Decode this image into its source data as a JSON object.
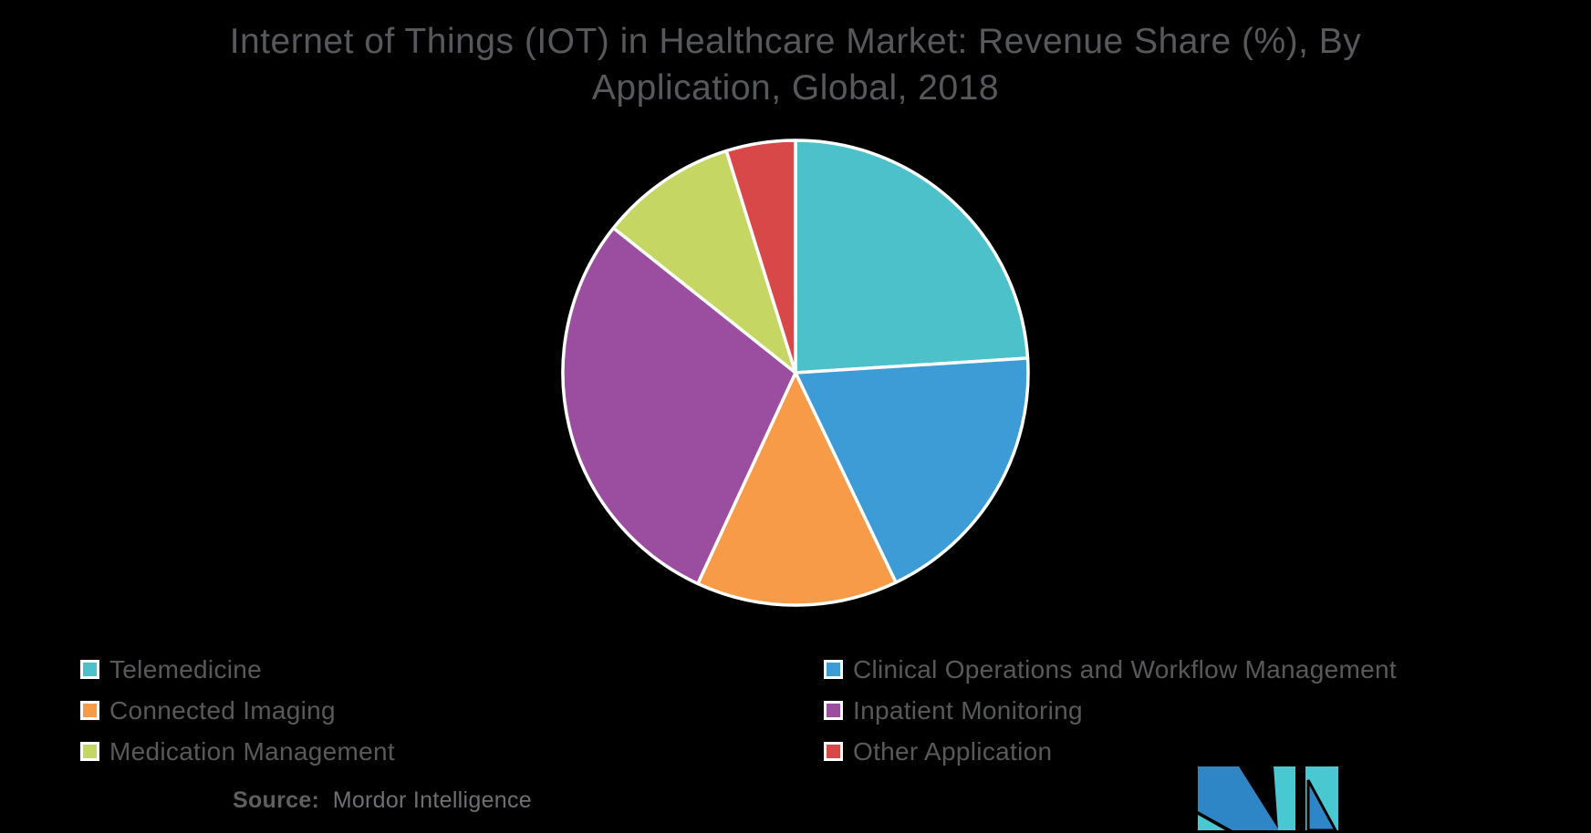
{
  "title": {
    "line1": "Internet of Things (IOT) in Healthcare Market: Revenue Share (%), By",
    "line2": "Application, Global, 2018"
  },
  "chart_data": {
    "type": "pie",
    "title": "Internet of Things (IOT) in Healthcare Market: Revenue Share (%), By Application, Global, 2018",
    "labels": [
      "Telemedicine",
      "Clinical Operations and Workflow Management",
      "Connected Imaging",
      "Inpatient Monitoring",
      "Medication Management",
      "Other Application"
    ],
    "values": [
      24.0,
      18.9,
      14.0,
      28.8,
      9.5,
      4.8
    ],
    "unit": "%",
    "colors": [
      "#4DC1C9",
      "#3D9BD5",
      "#F89B49",
      "#9B4EA0",
      "#C5D762",
      "#D94848"
    ],
    "start_angle_deg": 0,
    "direction": "clockwise",
    "separator_color": "#FFFFFF",
    "legend_position": "bottom-two-columns"
  },
  "legend": {
    "left_column_indices": [
      0,
      2,
      4
    ],
    "right_column_indices": [
      1,
      3,
      5
    ]
  },
  "source": {
    "label": "Source:",
    "text": "Mordor Intelligence"
  },
  "logo": {
    "name": "mordor-intelligence-logo",
    "blue": "#2E86C6",
    "teal": "#4AC8D2"
  },
  "colors": {
    "background": "#000000",
    "title_text": "#57585B",
    "legend_text": "#58595B"
  }
}
